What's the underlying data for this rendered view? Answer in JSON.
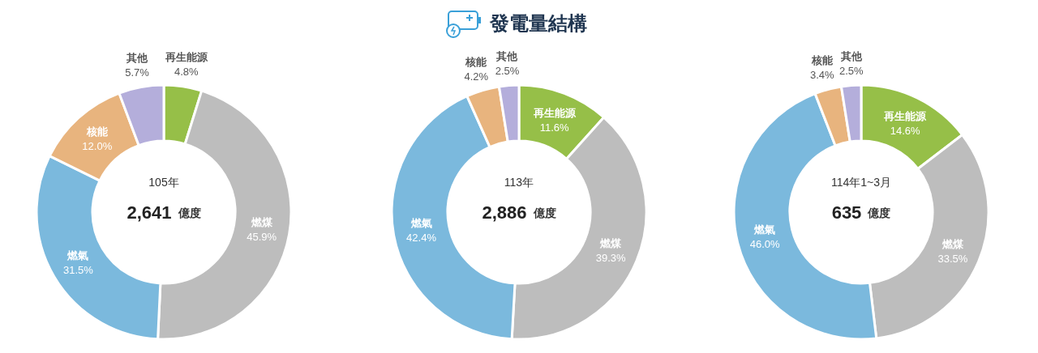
{
  "chart_data": [
    {
      "type": "donut",
      "categories": [
        "再生能源",
        "燃煤",
        "燃氣",
        "核能",
        "其他"
      ],
      "values": [
        4.8,
        45.9,
        31.5,
        12.0,
        5.7
      ],
      "value_labels": [
        "4.8%",
        "45.9%",
        "31.5%",
        "12.0%",
        "5.7%"
      ],
      "colors": [
        "#96bf48",
        "#bdbdbd",
        "#7bb9dd",
        "#e8b47e",
        "#b4aedb"
      ],
      "annotations": [
        "105年",
        "2,641",
        "億度"
      ]
    },
    {
      "type": "donut",
      "title": "發電量結構",
      "categories": [
        "再生能源",
        "燃煤",
        "燃氣",
        "核能",
        "其他"
      ],
      "values": [
        11.6,
        39.3,
        42.4,
        4.2,
        2.5
      ],
      "value_labels": [
        "11.6%",
        "39.3%",
        "42.4%",
        "4.2%",
        "2.5%"
      ],
      "colors": [
        "#96bf48",
        "#bdbdbd",
        "#7bb9dd",
        "#e8b47e",
        "#b4aedb"
      ],
      "annotations": [
        "113年",
        "2,886",
        "億度"
      ]
    },
    {
      "type": "donut",
      "categories": [
        "再生能源",
        "燃煤",
        "燃氣",
        "核能",
        "其他"
      ],
      "values": [
        14.6,
        33.5,
        46.0,
        3.4,
        2.5
      ],
      "value_labels": [
        "14.6%",
        "33.5%",
        "46.0%",
        "3.4%",
        "2.5%"
      ],
      "colors": [
        "#96bf48",
        "#bdbdbd",
        "#7bb9dd",
        "#e8b47e",
        "#b4aedb"
      ],
      "annotations": [
        "114年1~3月",
        "635",
        "億度"
      ]
    }
  ]
}
